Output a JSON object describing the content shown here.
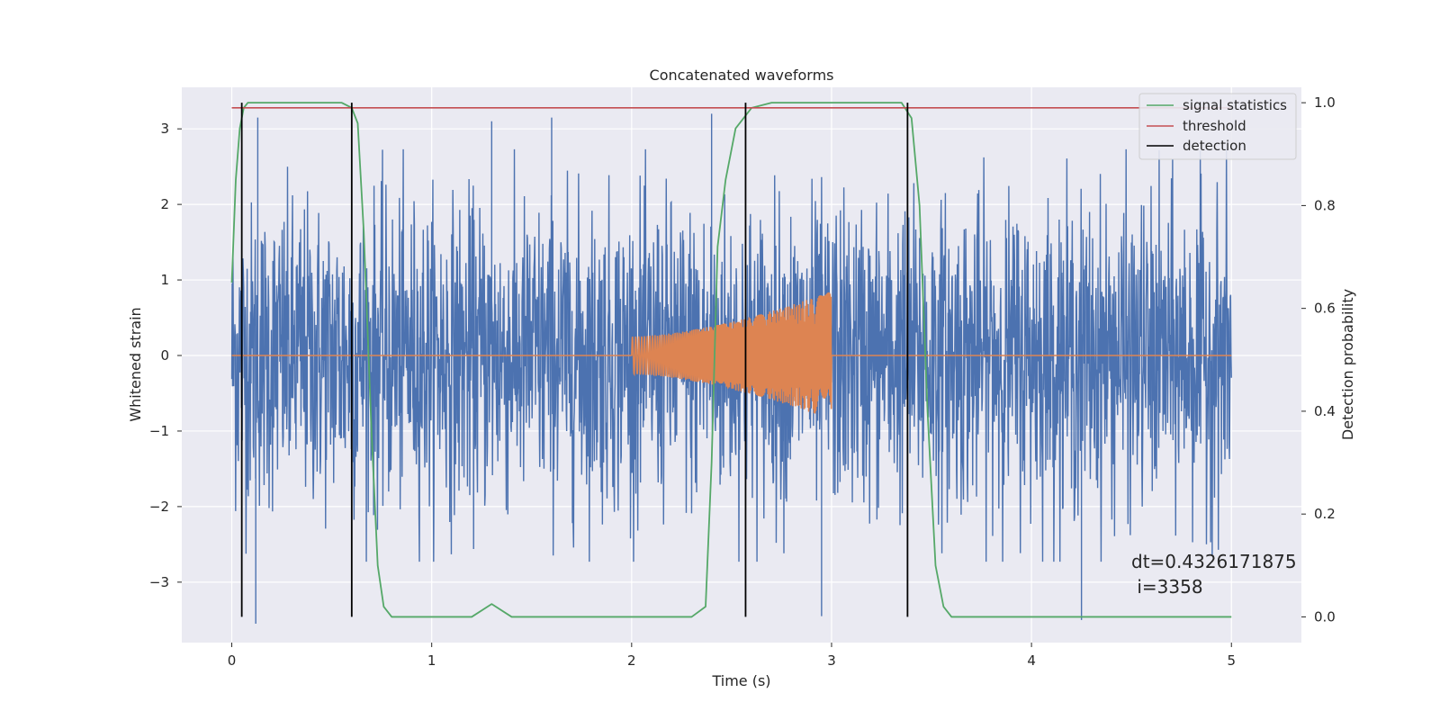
{
  "chart_data": {
    "type": "line",
    "title": "Concatenated waveforms",
    "xlabel": "Time (s)",
    "ylabel": "Whitened strain",
    "ylabel_right": "Detection probability",
    "xlim": [
      -0.25,
      5.35
    ],
    "ylim": [
      -3.8,
      3.55
    ],
    "ylim_right": [
      -0.05,
      1.03
    ],
    "xticks": [
      0,
      1,
      2,
      3,
      4,
      5
    ],
    "xtick_labels": [
      "0",
      "1",
      "2",
      "3",
      "4",
      "5"
    ],
    "yticks": [
      -3,
      -2,
      -1,
      0,
      1,
      2,
      3
    ],
    "ytick_labels": [
      "−3",
      "−2",
      "−1",
      "0",
      "1",
      "2",
      "3"
    ],
    "yticks_right": [
      0.0,
      0.2,
      0.4,
      0.6,
      0.8,
      1.0
    ],
    "ytick_labels_right": [
      "0.0",
      "0.2",
      "0.4",
      "0.6",
      "0.8",
      "1.0"
    ],
    "grid": true,
    "legend_position": "top-right",
    "series": [
      {
        "role": "noise",
        "axis": "left",
        "color": "#4c72b0",
        "x_range": [
          0,
          5
        ],
        "envelope": 2.6,
        "spikes": [
          [
            0.13,
            3.15
          ],
          [
            1.3,
            3.1
          ],
          [
            1.6,
            3.15
          ],
          [
            2.4,
            3.2
          ],
          [
            4.25,
            -3.5
          ],
          [
            2.95,
            -3.45
          ],
          [
            0.12,
            -3.55
          ]
        ]
      },
      {
        "role": "injected waveform",
        "axis": "left",
        "color": "#dd8452",
        "x_range": [
          0,
          5
        ],
        "chirp_x_range": [
          2.0,
          3.0
        ],
        "chirp_amplitude_range": [
          0.25,
          0.85
        ]
      },
      {
        "name": "signal statistics",
        "axis": "right",
        "color": "#55a868",
        "x": [
          0,
          0.02,
          0.04,
          0.06,
          0.08,
          0.1,
          0.2,
          0.4,
          0.55,
          0.6,
          0.63,
          0.66,
          0.7,
          0.73,
          0.76,
          0.8,
          1.2,
          1.3,
          1.4,
          2.3,
          2.37,
          2.4,
          2.43,
          2.47,
          2.52,
          2.6,
          2.7,
          3.2,
          3.35,
          3.4,
          3.44,
          3.48,
          3.52,
          3.56,
          3.6,
          5.0
        ],
        "values": [
          0.65,
          0.85,
          0.95,
          0.99,
          1.0,
          1.0,
          1.0,
          1.0,
          1.0,
          0.99,
          0.96,
          0.75,
          0.35,
          0.1,
          0.02,
          0.0,
          0.0,
          0.025,
          0.0,
          0.0,
          0.02,
          0.3,
          0.72,
          0.85,
          0.95,
          0.99,
          1.0,
          1.0,
          1.0,
          0.97,
          0.8,
          0.4,
          0.1,
          0.02,
          0.0,
          0.0
        ]
      },
      {
        "name": "threshold",
        "axis": "right",
        "color": "#c44e52",
        "x": [
          0,
          5
        ],
        "values": [
          0.99,
          0.99
        ]
      },
      {
        "name": "detection",
        "axis": "right",
        "color": "#000000",
        "x_positions": [
          0.05,
          0.6,
          2.57,
          3.38
        ],
        "y_range": [
          0,
          1
        ]
      }
    ],
    "annotation": {
      "lines": [
        "dt=0.4326171875",
        " i=3358"
      ],
      "x": 4.5,
      "y": -2.75
    }
  }
}
